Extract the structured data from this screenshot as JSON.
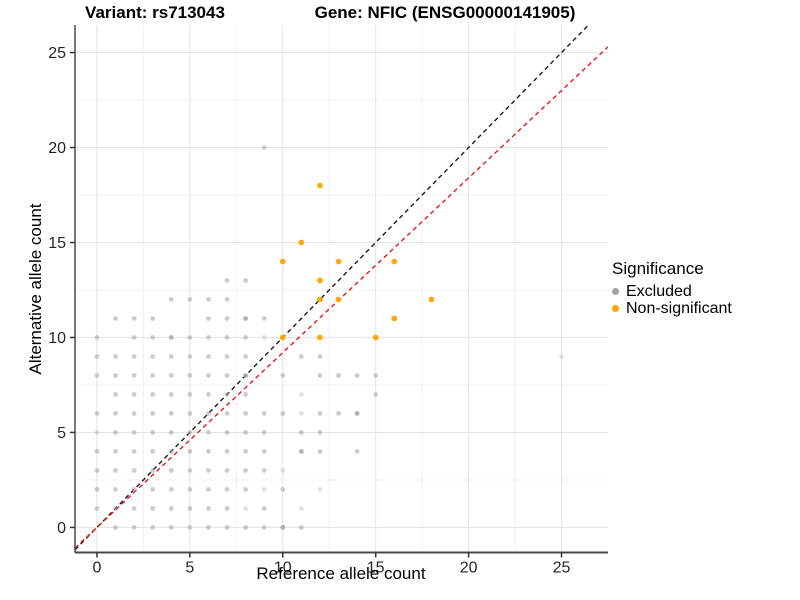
{
  "titles": {
    "variant": "Variant: rs713043",
    "gene": "Gene: NFIC (ENSG00000141905)"
  },
  "legend": {
    "title": "Significance"
  },
  "chart_data": {
    "type": "scatter",
    "xlabel": "Reference allele count",
    "ylabel": "Alternative allele count",
    "x_ticks": [
      0,
      5,
      10,
      15,
      20,
      25
    ],
    "y_ticks": [
      0,
      5,
      10,
      15,
      20,
      25
    ],
    "x_minor_ticks": [
      2.5,
      7.5,
      12.5,
      17.5,
      22.5
    ],
    "y_minor_ticks": [
      2.5,
      7.5,
      12.5,
      17.5,
      22.5
    ],
    "xlim": [
      -1.18,
      27.5
    ],
    "ylim": [
      -1.32,
      26.45
    ],
    "grid": true,
    "legend_position": "right",
    "colors": {
      "excluded": "#A4A4A4",
      "non_significant": "#FFA400",
      "identity_line": "#1A1A1A",
      "expected_line": "#E81717",
      "grid_major": "#E3E3E3",
      "grid_minor": "#F0F0F0",
      "axis_line": "#4A4A4A",
      "tick_text": "#262626"
    },
    "series": [
      {
        "name": "Excluded",
        "color": "#A4A4A4",
        "radius": 2.4,
        "opacity": 0.55,
        "points": [
          [
            1,
            0
          ],
          [
            2,
            0
          ],
          [
            3,
            0
          ],
          [
            4,
            0
          ],
          [
            5,
            0
          ],
          [
            6,
            0
          ],
          [
            7,
            0
          ],
          [
            8,
            0
          ],
          [
            9,
            0
          ],
          [
            10,
            0
          ],
          [
            11,
            0
          ],
          [
            0,
            1
          ],
          [
            1,
            1
          ],
          [
            2,
            1
          ],
          [
            3,
            1
          ],
          [
            4,
            1
          ],
          [
            5,
            1
          ],
          [
            6,
            1
          ],
          [
            7,
            1
          ],
          [
            8,
            1
          ],
          [
            9,
            1
          ],
          [
            11,
            1
          ],
          [
            0,
            2
          ],
          [
            1,
            2
          ],
          [
            2,
            2
          ],
          [
            3,
            2
          ],
          [
            4,
            2
          ],
          [
            5,
            2
          ],
          [
            6,
            2
          ],
          [
            7,
            2
          ],
          [
            8,
            2
          ],
          [
            9,
            2
          ],
          [
            10,
            2
          ],
          [
            12,
            2
          ],
          [
            0,
            3
          ],
          [
            1,
            3
          ],
          [
            2,
            3
          ],
          [
            3,
            3
          ],
          [
            4,
            3
          ],
          [
            5,
            3
          ],
          [
            6,
            3
          ],
          [
            7,
            3
          ],
          [
            8,
            3
          ],
          [
            9,
            3
          ],
          [
            10,
            3
          ],
          [
            0,
            4
          ],
          [
            1,
            4
          ],
          [
            2,
            4
          ],
          [
            3,
            4
          ],
          [
            4,
            4
          ],
          [
            5,
            4
          ],
          [
            6,
            4
          ],
          [
            7,
            4
          ],
          [
            8,
            4
          ],
          [
            9,
            4
          ],
          [
            11,
            4
          ],
          [
            12,
            4
          ],
          [
            14,
            4
          ],
          [
            0,
            5
          ],
          [
            1,
            5
          ],
          [
            2,
            5
          ],
          [
            3,
            5
          ],
          [
            4,
            5
          ],
          [
            5,
            5
          ],
          [
            6,
            5
          ],
          [
            7,
            5
          ],
          [
            8,
            5
          ],
          [
            9,
            5
          ],
          [
            11,
            5
          ],
          [
            12,
            5
          ],
          [
            0,
            6
          ],
          [
            1,
            6
          ],
          [
            2,
            6
          ],
          [
            3,
            6
          ],
          [
            4,
            6
          ],
          [
            5,
            6
          ],
          [
            6,
            6
          ],
          [
            7,
            6
          ],
          [
            8,
            6
          ],
          [
            9,
            6
          ],
          [
            10,
            6
          ],
          [
            11,
            6
          ],
          [
            12,
            6
          ],
          [
            13,
            6
          ],
          [
            14,
            6
          ],
          [
            1,
            7
          ],
          [
            2,
            7
          ],
          [
            3,
            7
          ],
          [
            4,
            7
          ],
          [
            5,
            7
          ],
          [
            6,
            7
          ],
          [
            7,
            7
          ],
          [
            8,
            7
          ],
          [
            11,
            7
          ],
          [
            15,
            7
          ],
          [
            0,
            8
          ],
          [
            1,
            8
          ],
          [
            2,
            8
          ],
          [
            3,
            8
          ],
          [
            4,
            8
          ],
          [
            5,
            8
          ],
          [
            6,
            8
          ],
          [
            7,
            8
          ],
          [
            8,
            8
          ],
          [
            10,
            8
          ],
          [
            12,
            8
          ],
          [
            13,
            8
          ],
          [
            14,
            8
          ],
          [
            15,
            8
          ],
          [
            0,
            9
          ],
          [
            1,
            9
          ],
          [
            2,
            9
          ],
          [
            3,
            9
          ],
          [
            4,
            9
          ],
          [
            5,
            9
          ],
          [
            6,
            9
          ],
          [
            7,
            9
          ],
          [
            8,
            9
          ],
          [
            11,
            9
          ],
          [
            12,
            9
          ],
          [
            25,
            9
          ],
          [
            0,
            10
          ],
          [
            2,
            10
          ],
          [
            3,
            10
          ],
          [
            4,
            10
          ],
          [
            5,
            10
          ],
          [
            6,
            10
          ],
          [
            7,
            10
          ],
          [
            8,
            10
          ],
          [
            9,
            10
          ],
          [
            1,
            11
          ],
          [
            2,
            11
          ],
          [
            3,
            11
          ],
          [
            6,
            11
          ],
          [
            7,
            11
          ],
          [
            8,
            11
          ],
          [
            9,
            11
          ],
          [
            4,
            12
          ],
          [
            5,
            12
          ],
          [
            6,
            12
          ],
          [
            7,
            12
          ],
          [
            7,
            13
          ],
          [
            8,
            13
          ],
          [
            9,
            20
          ]
        ]
      },
      {
        "name": "Non-significant",
        "color": "#FFA400",
        "radius": 2.9,
        "opacity": 0.95,
        "points": [
          [
            10,
            10
          ],
          [
            12,
            10
          ],
          [
            15,
            10
          ],
          [
            16,
            11
          ],
          [
            12,
            12
          ],
          [
            13,
            12
          ],
          [
            18,
            12
          ],
          [
            12,
            13
          ],
          [
            10,
            14
          ],
          [
            13,
            14
          ],
          [
            16,
            14
          ],
          [
            11,
            15
          ],
          [
            12,
            18
          ]
        ]
      }
    ],
    "emphasis": {
      "light_points": [
        [
          0,
          5
        ],
        [
          8,
          1
        ],
        [
          11,
          1
        ],
        [
          9,
          2
        ],
        [
          12,
          2
        ],
        [
          10,
          3
        ],
        [
          11,
          6
        ],
        [
          11,
          7
        ],
        [
          9,
          10
        ],
        [
          25,
          9
        ]
      ],
      "light_opacity": 0.32,
      "dark_points": [
        [
          10,
          0
        ],
        [
          11,
          4
        ],
        [
          14,
          6
        ],
        [
          8,
          8
        ],
        [
          4,
          10
        ],
        [
          8,
          11
        ]
      ],
      "dark_opacity": 0.85
    },
    "lines": [
      {
        "name": "identity-line",
        "slope": 1.0,
        "intercept": 0,
        "color": "#1A1A1A",
        "dash": [
          4.5,
          3.5
        ],
        "width": 1.4
      },
      {
        "name": "expected-ratio-line",
        "slope": 0.92,
        "intercept": 0,
        "color": "#E81717",
        "dash": [
          4.5,
          3.5
        ],
        "width": 1.4
      }
    ]
  }
}
